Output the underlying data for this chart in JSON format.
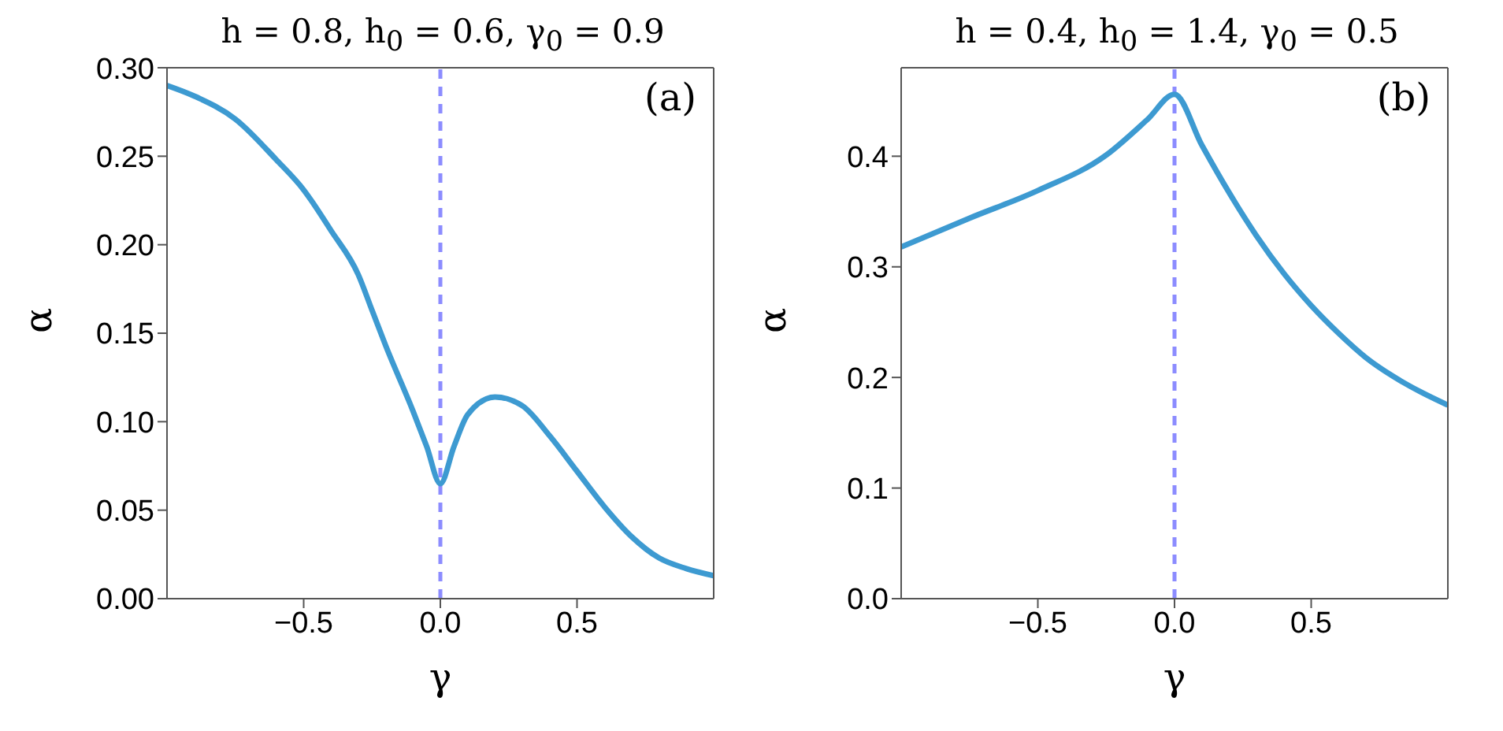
{
  "chart_data": [
    {
      "type": "line",
      "title": "h = 0.8, h$_{0}$ = 0.6, γ$_{0}$ = 0.9",
      "xlabel": "γ",
      "ylabel": "α",
      "annotations": [
        "(a)"
      ],
      "xlim": [
        -1,
        1
      ],
      "xticks": [
        {
          "value": -0.5,
          "label": "−0.5"
        },
        {
          "value": 0,
          "label": "0.0"
        },
        {
          "value": 0.5,
          "label": "0.5"
        }
      ],
      "ylim": [
        0,
        0.3
      ],
      "yticks": [
        {
          "value": 0,
          "label": "0.00"
        },
        {
          "value": 0.05,
          "label": "0.05"
        },
        {
          "value": 0.1,
          "label": "0.10"
        },
        {
          "value": 0.15,
          "label": "0.15"
        },
        {
          "value": 0.2,
          "label": "0.20"
        },
        {
          "value": 0.25,
          "label": "0.25"
        },
        {
          "value": 0.3,
          "label": "0.30"
        }
      ],
      "grid": false,
      "legend": false,
      "marker": "none",
      "ref_lines": [
        {
          "axis": "x",
          "value": 0,
          "color": "#8c8cff",
          "line_style": "dashed"
        }
      ],
      "series": [
        {
          "color": "#3d9ad1",
          "x": [
            -1,
            -0.9,
            -0.75,
            -0.6,
            -0.5,
            -0.4,
            -0.3,
            -0.25,
            -0.2,
            -0.1,
            -0.05,
            0,
            0.05,
            0.1,
            0.2,
            0.3,
            0.4,
            0.5,
            0.6,
            0.7,
            0.8,
            0.9,
            1
          ],
          "values": [
            0.29,
            0.284,
            0.271,
            0.248,
            0.231,
            0.208,
            0.183,
            0.163,
            0.143,
            0.106,
            0.086,
            0.065,
            0.086,
            0.104,
            0.114,
            0.109,
            0.092,
            0.072,
            0.052,
            0.035,
            0.023,
            0.017,
            0.013
          ]
        }
      ]
    },
    {
      "type": "line",
      "title": "h = 0.4, h$_{0}$ = 1.4, γ$_{0}$ = 0.5",
      "xlabel": "γ",
      "ylabel": "α",
      "annotations": [
        "(b)"
      ],
      "xlim": [
        -1,
        1
      ],
      "xticks": [
        {
          "value": -0.5,
          "label": "−0.5"
        },
        {
          "value": 0,
          "label": "0.0"
        },
        {
          "value": 0.5,
          "label": "0.5"
        }
      ],
      "ylim": [
        0,
        0.48
      ],
      "yticks": [
        {
          "value": 0,
          "label": "0.0"
        },
        0.1,
        0.2,
        0.3,
        0.4
      ],
      "grid": false,
      "legend": false,
      "marker": "none",
      "ref_lines": [
        {
          "axis": "x",
          "value": 0,
          "color": "#8c8cff",
          "line_style": "dashed"
        }
      ],
      "series": [
        {
          "color": "#3d9ad1",
          "x": [
            -1,
            -0.75,
            -0.5,
            -0.25,
            -0.1,
            0,
            0.1,
            0.2,
            0.3,
            0.4,
            0.5,
            0.6,
            0.7,
            0.8,
            0.9,
            1
          ],
          "values": [
            0.318,
            0.344,
            0.369,
            0.401,
            0.433,
            0.456,
            0.41,
            0.367,
            0.328,
            0.294,
            0.265,
            0.24,
            0.218,
            0.201,
            0.187,
            0.175
          ]
        }
      ]
    }
  ]
}
